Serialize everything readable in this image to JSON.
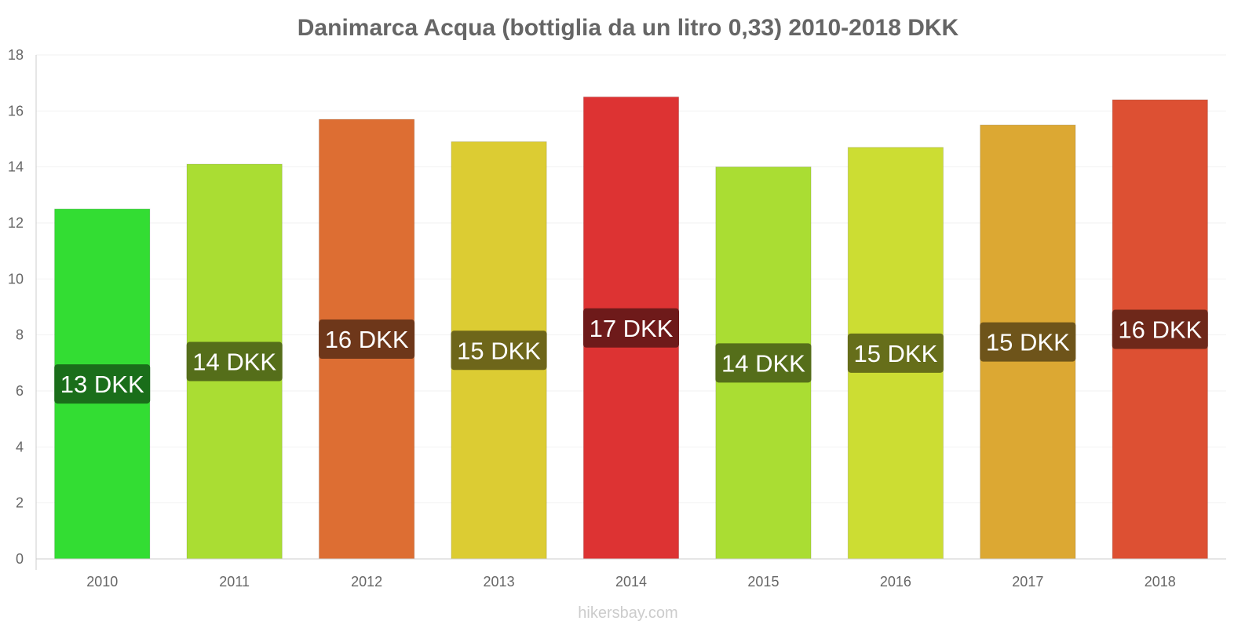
{
  "chart_data": {
    "type": "bar",
    "title": "Danimarca Acqua (bottiglia da un litro 0,33) 2010-2018 DKK",
    "xlabel": "",
    "ylabel": "",
    "ylim": [
      0,
      18
    ],
    "yticks": [
      0,
      2,
      4,
      6,
      8,
      10,
      12,
      14,
      16,
      18
    ],
    "grid": true,
    "categories": [
      "2010",
      "2011",
      "2012",
      "2013",
      "2014",
      "2015",
      "2016",
      "2017",
      "2018"
    ],
    "values": [
      12.5,
      14.1,
      15.7,
      14.9,
      16.5,
      14.0,
      14.7,
      15.5,
      16.4
    ],
    "labels": [
      "13 DKK",
      "14 DKK",
      "16 DKK",
      "15 DKK",
      "17 DKK",
      "14 DKK",
      "15 DKK",
      "15 DKK",
      "16 DKK"
    ],
    "bar_colors": [
      "#33dd33",
      "#aadd33",
      "#dd6e33",
      "#dccc33",
      "#dd3333",
      "#aadd33",
      "#ccdd33",
      "#dca833",
      "#dd5033"
    ],
    "label_colors": [
      "#1a6e1a",
      "#556e1a",
      "#6e371a",
      "#6e661a",
      "#6e1a1a",
      "#556e1a",
      "#666e1a",
      "#6e541a",
      "#6e281a"
    ]
  },
  "credit": "hikersbay.com"
}
